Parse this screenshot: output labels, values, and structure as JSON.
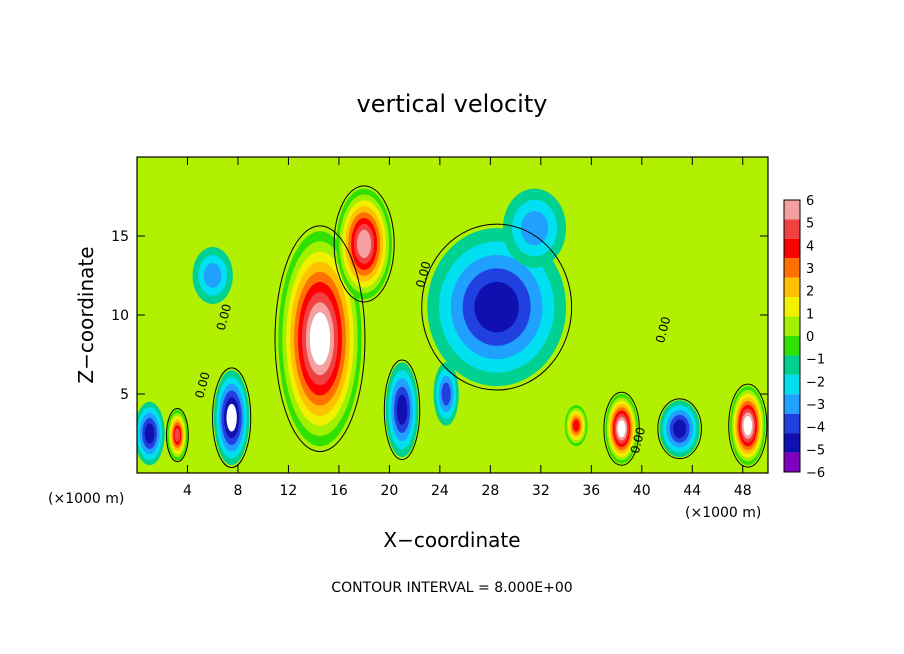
{
  "chart_data": {
    "type": "heatmap",
    "title": "vertical velocity",
    "xlabel": "X−coordinate",
    "ylabel": "Z−coordinate",
    "x_unit_left": "(×1000 m)",
    "x_unit_right": "(×1000 m)",
    "xlim": [
      0,
      50
    ],
    "ylim": [
      0,
      20
    ],
    "xticks": [
      4,
      8,
      12,
      16,
      20,
      24,
      28,
      32,
      36,
      40,
      44,
      48
    ],
    "yticks": [
      5,
      10,
      15
    ],
    "contour_interval_text": "CONTOUR INTERVAL =  8.000E+00",
    "contour_labels": [
      {
        "x": 5.5,
        "y": 5.5,
        "text": "0.00"
      },
      {
        "x": 7.2,
        "y": 9.8,
        "text": "0.00"
      },
      {
        "x": 23.0,
        "y": 12.5,
        "text": "0.00"
      },
      {
        "x": 42.0,
        "y": 9.0,
        "text": "0.00"
      },
      {
        "x": 40.0,
        "y": 2.0,
        "text": "0.00"
      }
    ],
    "colorbar": {
      "levels": [
        6,
        5,
        4,
        3,
        2,
        1,
        0,
        -1,
        -2,
        -3,
        -4,
        -5,
        -6
      ],
      "colors": [
        "#f4a0a0",
        "#f04040",
        "#ff0000",
        "#ff7000",
        "#ffc000",
        "#f0f000",
        "#a0f000",
        "#30e000",
        "#00d090",
        "#00e0f0",
        "#20a0ff",
        "#2040e0",
        "#1010b0",
        "#8000c0"
      ]
    },
    "features": [
      {
        "kind": "updraft",
        "x": 14.5,
        "z": 8.5,
        "rx": 3.3,
        "rz": 6.8,
        "strength": 1.0
      },
      {
        "kind": "updraft",
        "x": 18.0,
        "z": 14.5,
        "rx": 2.2,
        "rz": 3.5,
        "strength": 0.85
      },
      {
        "kind": "updraft",
        "x": 3.2,
        "z": 2.4,
        "rx": 0.8,
        "rz": 1.6,
        "strength": 0.8
      },
      {
        "kind": "updraft",
        "x": 38.4,
        "z": 2.8,
        "rx": 1.3,
        "rz": 2.2,
        "strength": 0.95
      },
      {
        "kind": "updraft",
        "x": 48.4,
        "z": 3.0,
        "rx": 1.4,
        "rz": 2.5,
        "strength": 0.95
      },
      {
        "kind": "updraft",
        "x": 34.8,
        "z": 3.0,
        "rx": 0.9,
        "rz": 1.3,
        "strength": 0.7
      },
      {
        "kind": "downdraft",
        "x": 7.5,
        "z": 3.5,
        "rx": 1.4,
        "rz": 3.0,
        "strength": 0.95
      },
      {
        "kind": "downdraft",
        "x": 21.0,
        "z": 4.0,
        "rx": 1.3,
        "rz": 3.0,
        "strength": 0.9
      },
      {
        "kind": "downdraft",
        "x": 28.5,
        "z": 10.5,
        "rx": 5.5,
        "rz": 5.0,
        "strength": 0.8
      },
      {
        "kind": "downdraft",
        "x": 43.0,
        "z": 2.8,
        "rx": 1.6,
        "rz": 1.8,
        "strength": 0.9
      },
      {
        "kind": "downdraft",
        "x": 1.0,
        "z": 2.5,
        "rx": 1.2,
        "rz": 2.0,
        "strength": 0.75
      },
      {
        "kind": "downdraft",
        "x": 6.0,
        "z": 12.5,
        "rx": 1.6,
        "rz": 1.8,
        "strength": 0.55
      },
      {
        "kind": "downdraft",
        "x": 24.5,
        "z": 5.0,
        "rx": 1.0,
        "rz": 2.0,
        "strength": 0.6
      },
      {
        "kind": "downdraft",
        "x": 31.5,
        "z": 15.5,
        "rx": 2.5,
        "rz": 2.5,
        "strength": 0.5
      }
    ]
  }
}
